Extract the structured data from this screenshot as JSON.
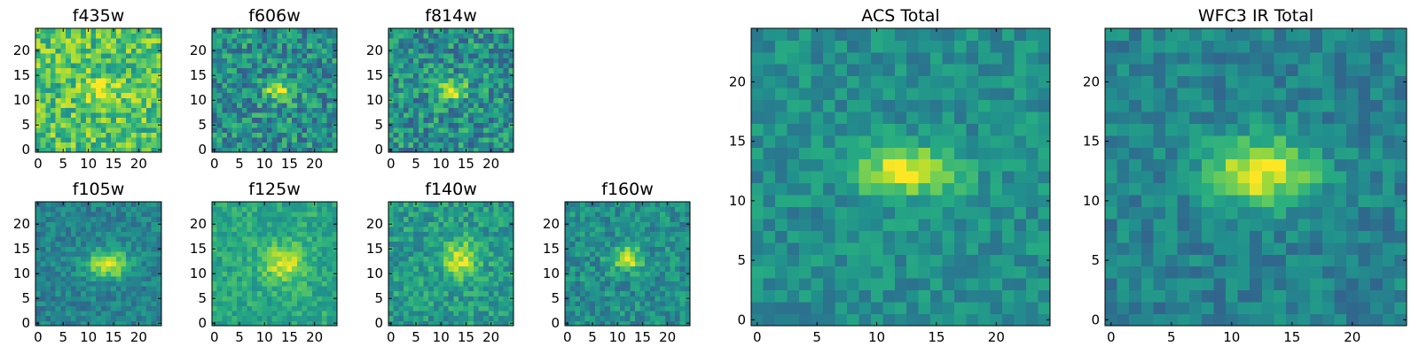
{
  "figure": {
    "description_visible": false
  },
  "chart_data": [
    {
      "type": "heatmap",
      "title": "f435w",
      "grid": "25x25",
      "xlim": [
        0,
        24
      ],
      "ylim": [
        0,
        24
      ],
      "xticks": [
        0,
        5,
        10,
        15,
        20
      ],
      "yticks": [
        0,
        5,
        10,
        15,
        20
      ],
      "xticklabels": [
        "0",
        "5",
        "10",
        "15",
        "20"
      ],
      "yticklabels": [
        "0",
        "5",
        "10",
        "15",
        "20"
      ],
      "colormap": "viridis",
      "background_level": 0.72,
      "noise": 0.22,
      "source": {
        "x": 13,
        "y": 12,
        "sx": 2.5,
        "sy": 1.6,
        "peak": 0.25
      },
      "seed": 11
    },
    {
      "type": "heatmap",
      "title": "f606w",
      "grid": "25x25",
      "xlim": [
        0,
        24
      ],
      "ylim": [
        0,
        24
      ],
      "xticks": [
        0,
        5,
        10,
        15,
        20
      ],
      "yticks": [
        0,
        5,
        10,
        15,
        20
      ],
      "xticklabels": [
        "0",
        "5",
        "10",
        "15",
        "20"
      ],
      "yticklabels": [
        "0",
        "5",
        "10",
        "15",
        "20"
      ],
      "colormap": "viridis",
      "background_level": 0.5,
      "noise": 0.22,
      "source": {
        "x": 13,
        "y": 12,
        "sx": 2.0,
        "sy": 1.5,
        "peak": 0.45
      },
      "seed": 23
    },
    {
      "type": "heatmap",
      "title": "f814w",
      "grid": "25x25",
      "xlim": [
        0,
        24
      ],
      "ylim": [
        0,
        24
      ],
      "xticks": [
        0,
        5,
        10,
        15,
        20
      ],
      "yticks": [
        0,
        5,
        10,
        15,
        20
      ],
      "xticklabels": [
        "0",
        "5",
        "10",
        "15",
        "20"
      ],
      "yticklabels": [
        "0",
        "5",
        "10",
        "15",
        "20"
      ],
      "colormap": "viridis",
      "background_level": 0.5,
      "noise": 0.22,
      "source": {
        "x": 12,
        "y": 12,
        "sx": 2.2,
        "sy": 1.5,
        "peak": 0.45
      },
      "seed": 37
    },
    {
      "type": "heatmap",
      "title": "f105w",
      "grid": "25x25",
      "xlim": [
        0,
        24
      ],
      "ylim": [
        0,
        24
      ],
      "xticks": [
        0,
        5,
        10,
        15,
        20
      ],
      "yticks": [
        0,
        5,
        10,
        15,
        20
      ],
      "xticklabels": [
        "0",
        "5",
        "10",
        "15",
        "20"
      ],
      "yticklabels": [
        "0",
        "5",
        "10",
        "15",
        "20"
      ],
      "colormap": "viridis",
      "background_level": 0.45,
      "noise": 0.12,
      "source": {
        "x": 14,
        "y": 12,
        "sx": 3.0,
        "sy": 2.0,
        "peak": 0.5
      },
      "seed": 41
    },
    {
      "type": "heatmap",
      "title": "f125w",
      "grid": "25x25",
      "xlim": [
        0,
        24
      ],
      "ylim": [
        0,
        24
      ],
      "xticks": [
        0,
        5,
        10,
        15,
        20
      ],
      "yticks": [
        0,
        5,
        10,
        15,
        20
      ],
      "xticklabels": [
        "0",
        "5",
        "10",
        "15",
        "20"
      ],
      "yticklabels": [
        "0",
        "5",
        "10",
        "15",
        "20"
      ],
      "colormap": "viridis",
      "background_level": 0.6,
      "noise": 0.12,
      "source": {
        "x": 14,
        "y": 12,
        "sx": 3.0,
        "sy": 2.5,
        "peak": 0.35
      },
      "seed": 53
    },
    {
      "type": "heatmap",
      "title": "f140w",
      "grid": "25x25",
      "xlim": [
        0,
        24
      ],
      "ylim": [
        0,
        24
      ],
      "xticks": [
        0,
        5,
        10,
        15,
        20
      ],
      "yticks": [
        0,
        5,
        10,
        15,
        20
      ],
      "xticklabels": [
        "0",
        "5",
        "10",
        "15",
        "20"
      ],
      "yticklabels": [
        "0",
        "5",
        "10",
        "15",
        "20"
      ],
      "colormap": "viridis",
      "background_level": 0.55,
      "noise": 0.15,
      "source": {
        "x": 14,
        "y": 13,
        "sx": 2.5,
        "sy": 2.5,
        "peak": 0.4
      },
      "seed": 67
    },
    {
      "type": "heatmap",
      "title": "f160w",
      "grid": "25x25",
      "xlim": [
        0,
        24
      ],
      "ylim": [
        0,
        24
      ],
      "xticks": [
        0,
        5,
        10,
        15,
        20
      ],
      "yticks": [
        0,
        5,
        10,
        15,
        20
      ],
      "xticklabels": [
        "0",
        "5",
        "10",
        "15",
        "20"
      ],
      "yticklabels": [
        "0",
        "5",
        "10",
        "15",
        "20"
      ],
      "colormap": "viridis",
      "background_level": 0.5,
      "noise": 0.15,
      "source": {
        "x": 12,
        "y": 13,
        "sx": 2.2,
        "sy": 1.6,
        "peak": 0.45
      },
      "seed": 79
    },
    {
      "type": "heatmap",
      "title": "ACS Total",
      "grid": "25x25",
      "xlim": [
        0,
        24
      ],
      "ylim": [
        0,
        24
      ],
      "xticks": [
        0,
        5,
        10,
        15,
        20
      ],
      "yticks": [
        0,
        5,
        10,
        15,
        20
      ],
      "xticklabels": [
        "0",
        "5",
        "10",
        "15",
        "20"
      ],
      "yticklabels": [
        "0",
        "5",
        "10",
        "15",
        "20"
      ],
      "colormap": "viridis",
      "background_level": 0.5,
      "noise": 0.12,
      "source": {
        "x": 12.5,
        "y": 12.5,
        "sx": 2.8,
        "sy": 1.4,
        "peak": 0.5
      },
      "seed": 97
    },
    {
      "type": "heatmap",
      "title": "WFC3 IR Total",
      "grid": "25x25",
      "xlim": [
        0,
        24
      ],
      "ylim": [
        0,
        24
      ],
      "xticks": [
        0,
        5,
        10,
        15,
        20
      ],
      "yticks": [
        0,
        5,
        10,
        15,
        20
      ],
      "xticklabels": [
        "0",
        "5",
        "10",
        "15",
        "20"
      ],
      "yticklabels": [
        "0",
        "5",
        "10",
        "15",
        "20"
      ],
      "colormap": "viridis",
      "background_level": 0.45,
      "noise": 0.12,
      "source": {
        "x": 12.5,
        "y": 12.5,
        "sx": 3.0,
        "sy": 2.0,
        "peak": 0.55
      },
      "seed": 131
    }
  ]
}
